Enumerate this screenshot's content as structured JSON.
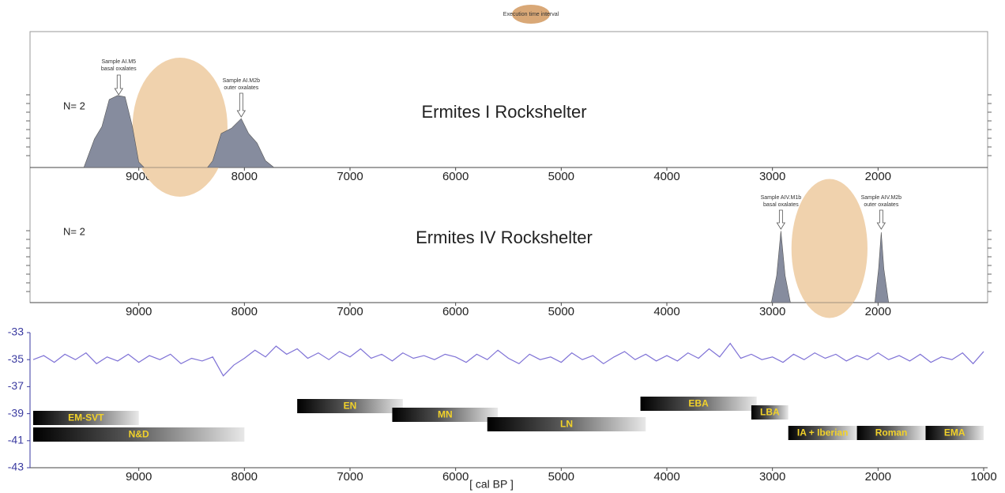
{
  "legend": "Execution time interval",
  "x_label": "[ cal BP ]",
  "chart_data": [
    {
      "type": "area",
      "title": "Ermites I Rockshelter",
      "n_label": "N= 2",
      "color": "#868c9e",
      "xlim": [
        10000,
        1000
      ],
      "xticks": [
        9000,
        8000,
        7000,
        6000,
        5000,
        4000,
        3000,
        2000
      ],
      "ylim": [
        0,
        1
      ],
      "x": [
        9520,
        9420,
        9350,
        9280,
        9200,
        9130,
        9060,
        9000,
        8950,
        8350,
        8300,
        8220,
        8120,
        8030,
        7960,
        7880,
        7800,
        7720
      ],
      "values": [
        0,
        0.21,
        0.3,
        0.5,
        0.53,
        0.52,
        0.3,
        0.04,
        0,
        0,
        0.05,
        0.25,
        0.29,
        0.36,
        0.25,
        0.18,
        0.05,
        0
      ],
      "interval": [
        9060,
        8160
      ],
      "interval_color": "#f0d2ad",
      "annotations": [
        {
          "lines": [
            "Sample AI.M5",
            "basal oxalates"
          ],
          "x": 9190
        },
        {
          "lines": [
            "Sample AI.M2b",
            "outer oxalates"
          ],
          "x": 8030
        }
      ]
    },
    {
      "type": "area",
      "title": "Ermites IV Rockshelter",
      "n_label": "N= 2",
      "color": "#868c9e",
      "xlim": [
        10000,
        1000
      ],
      "xticks": [
        9000,
        8000,
        7000,
        6000,
        5000,
        4000,
        3000,
        2000
      ],
      "ylim": [
        0,
        1
      ],
      "x": [
        3010,
        2960,
        2920,
        2880,
        2830,
        2030,
        1995,
        1970,
        1945,
        1900
      ],
      "values": [
        0,
        0.2,
        0.53,
        0.2,
        0,
        0,
        0.25,
        0.52,
        0.25,
        0
      ],
      "interval": [
        2820,
        2100
      ],
      "interval_color": "#f0d2ad",
      "annotations": [
        {
          "lines": [
            "Sample AIV.M1b",
            "basal oxalates"
          ],
          "x": 2920
        },
        {
          "lines": [
            "Sample AIV.M2b",
            "outer oxalates"
          ],
          "x": 1970
        }
      ]
    },
    {
      "type": "line",
      "color": "#7f72d6",
      "xlim": [
        10000,
        1000
      ],
      "xticks": [
        9000,
        8000,
        7000,
        6000,
        5000,
        4000,
        3000,
        2000,
        1000
      ],
      "ylim": [
        -43,
        -33
      ],
      "yticks": [
        -33,
        -35,
        -37,
        -39,
        -41,
        -43
      ],
      "x": [
        10000,
        9900,
        9800,
        9700,
        9600,
        9500,
        9400,
        9300,
        9200,
        9100,
        9000,
        8900,
        8800,
        8700,
        8600,
        8500,
        8400,
        8300,
        8200,
        8100,
        8000,
        7900,
        7800,
        7700,
        7600,
        7500,
        7400,
        7300,
        7200,
        7100,
        7000,
        6900,
        6800,
        6700,
        6600,
        6500,
        6400,
        6300,
        6200,
        6100,
        6000,
        5900,
        5800,
        5700,
        5600,
        5500,
        5400,
        5300,
        5200,
        5100,
        5000,
        4900,
        4800,
        4700,
        4600,
        4500,
        4400,
        4300,
        4200,
        4100,
        4000,
        3900,
        3800,
        3700,
        3600,
        3500,
        3400,
        3300,
        3200,
        3100,
        3000,
        2900,
        2800,
        2700,
        2600,
        2500,
        2400,
        2300,
        2200,
        2100,
        2000,
        1900,
        1800,
        1700,
        1600,
        1500,
        1400,
        1300,
        1200,
        1100,
        1000
      ],
      "values": [
        -35.0,
        -34.7,
        -35.2,
        -34.6,
        -35.0,
        -34.5,
        -35.3,
        -34.8,
        -35.1,
        -34.6,
        -35.2,
        -34.7,
        -35.0,
        -34.6,
        -35.3,
        -34.9,
        -35.1,
        -34.8,
        -36.2,
        -35.4,
        -34.9,
        -34.3,
        -34.8,
        -34.0,
        -34.6,
        -34.2,
        -34.9,
        -34.5,
        -35.0,
        -34.4,
        -34.8,
        -34.2,
        -34.9,
        -34.6,
        -35.1,
        -34.5,
        -34.9,
        -34.7,
        -35.0,
        -34.6,
        -34.8,
        -35.2,
        -34.6,
        -35.0,
        -34.3,
        -34.9,
        -35.3,
        -34.6,
        -35.0,
        -34.8,
        -35.2,
        -34.5,
        -35.0,
        -34.7,
        -35.3,
        -34.8,
        -34.4,
        -35.0,
        -34.6,
        -35.1,
        -34.7,
        -35.1,
        -34.5,
        -34.9,
        -34.2,
        -34.8,
        -33.8,
        -34.9,
        -34.6,
        -35.0,
        -34.8,
        -35.2,
        -34.6,
        -35.0,
        -34.5,
        -34.9,
        -34.6,
        -35.1,
        -34.7,
        -35.0,
        -34.5,
        -35.0,
        -34.7,
        -35.1,
        -34.6,
        -35.2,
        -34.8,
        -35.0,
        -34.5,
        -35.3,
        -34.4
      ],
      "periods": [
        {
          "name": "EM-SVT",
          "start": 10000,
          "end": 9000
        },
        {
          "name": "N&D",
          "start": 10000,
          "end": 8000
        },
        {
          "name": "EN",
          "start": 7500,
          "end": 6500
        },
        {
          "name": "MN",
          "start": 6600,
          "end": 5600
        },
        {
          "name": "LN",
          "start": 5700,
          "end": 4200
        },
        {
          "name": "EBA",
          "start": 4250,
          "end": 3150
        },
        {
          "name": "LBA",
          "start": 3200,
          "end": 2850
        },
        {
          "name": "IA + Iberian",
          "start": 2850,
          "end": 2200
        },
        {
          "name": "Roman",
          "start": 2200,
          "end": 1550
        },
        {
          "name": "EMA",
          "start": 1550,
          "end": 1000
        }
      ]
    }
  ]
}
